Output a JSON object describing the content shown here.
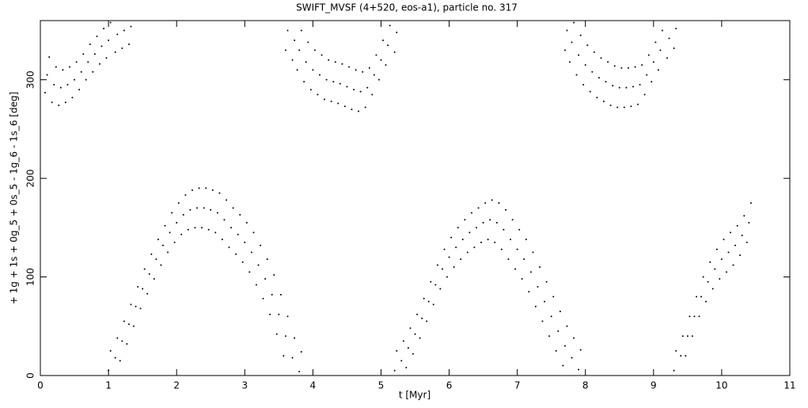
{
  "chart_data": {
    "type": "scatter",
    "title": "SWIFT_MVSF (4+520, eos-a1), particle no. 317",
    "x_label": "t [Myr]",
    "y_label": "+ 1g + 1s + 0g_5 + 0s_5 - 1g_6 - 1s_6 [deg]",
    "xlim": [
      0,
      11
    ],
    "ylim": [
      0,
      360
    ],
    "xticks": [
      0,
      1,
      2,
      3,
      4,
      5,
      6,
      7,
      8,
      9,
      10,
      11
    ],
    "yticks": [
      0,
      100,
      200,
      300
    ],
    "color": "#000000",
    "x": [
      0.07,
      0.1,
      0.13,
      0.17,
      0.2,
      0.23,
      0.27,
      0.3,
      0.33,
      0.37,
      0.4,
      0.43,
      0.47,
      0.5,
      0.53,
      0.57,
      0.6,
      0.63,
      0.67,
      0.7,
      0.73,
      0.77,
      0.8,
      0.83,
      0.87,
      0.9,
      0.93,
      0.97,
      1.0,
      1.03,
      1.1,
      1.13,
      1.2,
      1.23,
      1.3,
      1.33,
      1.0,
      1.03,
      1.1,
      1.13,
      1.17,
      1.2,
      1.23,
      1.27,
      1.3,
      1.33,
      1.37,
      1.4,
      1.43,
      1.47,
      1.5,
      1.53,
      1.57,
      1.6,
      1.63,
      1.67,
      1.7,
      1.73,
      1.77,
      1.8,
      1.83,
      1.87,
      1.9,
      1.93,
      1.97,
      2.0,
      2.03,
      2.07,
      2.1,
      2.13,
      2.17,
      2.2,
      2.23,
      2.27,
      2.3,
      2.33,
      2.37,
      2.4,
      2.43,
      2.47,
      2.5,
      2.53,
      2.57,
      2.6,
      2.63,
      2.67,
      2.7,
      2.73,
      2.77,
      2.8,
      2.83,
      2.87,
      2.9,
      2.93,
      2.97,
      3.0,
      3.03,
      3.07,
      3.1,
      3.13,
      3.17,
      3.2,
      3.23,
      3.27,
      3.3,
      3.33,
      3.37,
      3.4,
      3.43,
      3.47,
      3.5,
      3.53,
      3.57,
      3.6,
      3.63,
      3.7,
      3.73,
      3.8,
      3.83,
      3.6,
      3.63,
      3.7,
      3.73,
      3.77,
      3.8,
      3.83,
      3.87,
      3.9,
      3.93,
      3.97,
      4.0,
      4.03,
      4.07,
      4.1,
      4.13,
      4.17,
      4.2,
      4.23,
      4.27,
      4.3,
      4.33,
      4.37,
      4.4,
      4.43,
      4.47,
      4.5,
      4.53,
      4.57,
      4.6,
      4.63,
      4.67,
      4.7,
      4.73,
      4.77,
      4.8,
      4.83,
      4.87,
      4.9,
      4.93,
      4.97,
      5.0,
      5.03,
      5.07,
      5.1,
      5.13,
      5.2,
      5.23,
      5.2,
      5.23,
      5.3,
      5.33,
      5.37,
      5.4,
      5.43,
      5.47,
      5.5,
      5.53,
      5.57,
      5.6,
      5.63,
      5.67,
      5.7,
      5.73,
      5.77,
      5.8,
      5.83,
      5.87,
      5.9,
      5.93,
      5.97,
      6.0,
      6.03,
      6.07,
      6.1,
      6.13,
      6.17,
      6.2,
      6.23,
      6.27,
      6.3,
      6.33,
      6.37,
      6.4,
      6.43,
      6.47,
      6.5,
      6.53,
      6.57,
      6.6,
      6.63,
      6.67,
      6.7,
      6.73,
      6.77,
      6.8,
      6.83,
      6.87,
      6.9,
      6.93,
      6.97,
      7.0,
      7.03,
      7.07,
      7.1,
      7.13,
      7.17,
      7.2,
      7.23,
      7.27,
      7.3,
      7.33,
      7.37,
      7.4,
      7.43,
      7.47,
      7.5,
      7.53,
      7.57,
      7.6,
      7.63,
      7.67,
      7.7,
      7.73,
      7.8,
      7.83,
      7.9,
      7.93,
      7.7,
      7.73,
      7.77,
      7.8,
      7.83,
      7.87,
      7.9,
      7.93,
      7.97,
      8.0,
      8.03,
      8.07,
      8.1,
      8.13,
      8.17,
      8.2,
      8.23,
      8.27,
      8.3,
      8.33,
      8.37,
      8.4,
      8.43,
      8.47,
      8.5,
      8.53,
      8.57,
      8.6,
      8.63,
      8.67,
      8.7,
      8.73,
      8.77,
      8.8,
      8.83,
      8.87,
      8.9,
      8.93,
      8.97,
      9.0,
      9.03,
      9.07,
      9.1,
      9.13,
      9.2,
      9.23,
      9.3,
      9.33,
      9.3,
      9.33,
      9.4,
      9.43,
      9.47,
      9.5,
      9.53,
      9.57,
      9.6,
      9.63,
      9.67,
      9.7,
      9.73,
      9.77,
      9.8,
      9.83,
      9.87,
      9.9,
      9.93,
      9.97,
      10.0,
      10.03,
      10.07,
      10.1,
      10.13,
      10.17,
      10.2,
      10.23,
      10.27,
      10.3,
      10.33,
      10.37,
      10.4,
      10.43
    ],
    "values": [
      287,
      305,
      323,
      277,
      295,
      313,
      274,
      292,
      310,
      277,
      295,
      313,
      282,
      300,
      318,
      290,
      308,
      326,
      300,
      318,
      336,
      308,
      326,
      344,
      316,
      334,
      352,
      322,
      340,
      358,
      328,
      346,
      332,
      350,
      336,
      354,
      5,
      25,
      18,
      38,
      15,
      35,
      55,
      32,
      52,
      72,
      50,
      70,
      90,
      68,
      88,
      108,
      83,
      103,
      123,
      98,
      118,
      138,
      112,
      132,
      152,
      125,
      145,
      165,
      135,
      155,
      175,
      143,
      163,
      183,
      148,
      168,
      188,
      150,
      170,
      190,
      150,
      170,
      190,
      148,
      168,
      188,
      145,
      165,
      185,
      138,
      158,
      178,
      130,
      150,
      170,
      123,
      143,
      163,
      115,
      135,
      155,
      105,
      125,
      145,
      92,
      112,
      132,
      78,
      98,
      118,
      62,
      82,
      102,
      42,
      62,
      82,
      20,
      40,
      60,
      18,
      38,
      4,
      24,
      330,
      350,
      320,
      340,
      310,
      330,
      350,
      298,
      318,
      338,
      290,
      310,
      330,
      285,
      305,
      325,
      280,
      300,
      320,
      278,
      298,
      318,
      276,
      296,
      316,
      273,
      293,
      313,
      270,
      290,
      310,
      268,
      288,
      308,
      272,
      292,
      312,
      285,
      305,
      325,
      300,
      320,
      340,
      315,
      335,
      355,
      328,
      348,
      5,
      25,
      15,
      35,
      8,
      28,
      48,
      22,
      42,
      62,
      38,
      58,
      78,
      55,
      75,
      95,
      72,
      92,
      112,
      88,
      108,
      128,
      100,
      120,
      140,
      110,
      130,
      150,
      118,
      138,
      158,
      125,
      145,
      165,
      130,
      150,
      170,
      135,
      155,
      175,
      138,
      158,
      178,
      135,
      155,
      175,
      128,
      148,
      168,
      118,
      138,
      158,
      108,
      128,
      148,
      98,
      118,
      138,
      85,
      105,
      125,
      70,
      90,
      110,
      55,
      75,
      95,
      40,
      60,
      80,
      25,
      45,
      65,
      10,
      30,
      50,
      18,
      38,
      6,
      26,
      330,
      350,
      318,
      338,
      358,
      305,
      325,
      345,
      295,
      315,
      335,
      288,
      308,
      328,
      282,
      302,
      322,
      278,
      298,
      318,
      274,
      294,
      314,
      272,
      292,
      312,
      272,
      292,
      312,
      273,
      293,
      313,
      275,
      295,
      315,
      285,
      305,
      325,
      298,
      318,
      338,
      310,
      330,
      350,
      322,
      342,
      332,
      352,
      5,
      25,
      20,
      40,
      20,
      40,
      60,
      40,
      60,
      80,
      60,
      80,
      100,
      75,
      95,
      115,
      88,
      108,
      128,
      98,
      118,
      138,
      105,
      125,
      145,
      112,
      132,
      152,
      122,
      142,
      162,
      135,
      155,
      175
    ]
  }
}
